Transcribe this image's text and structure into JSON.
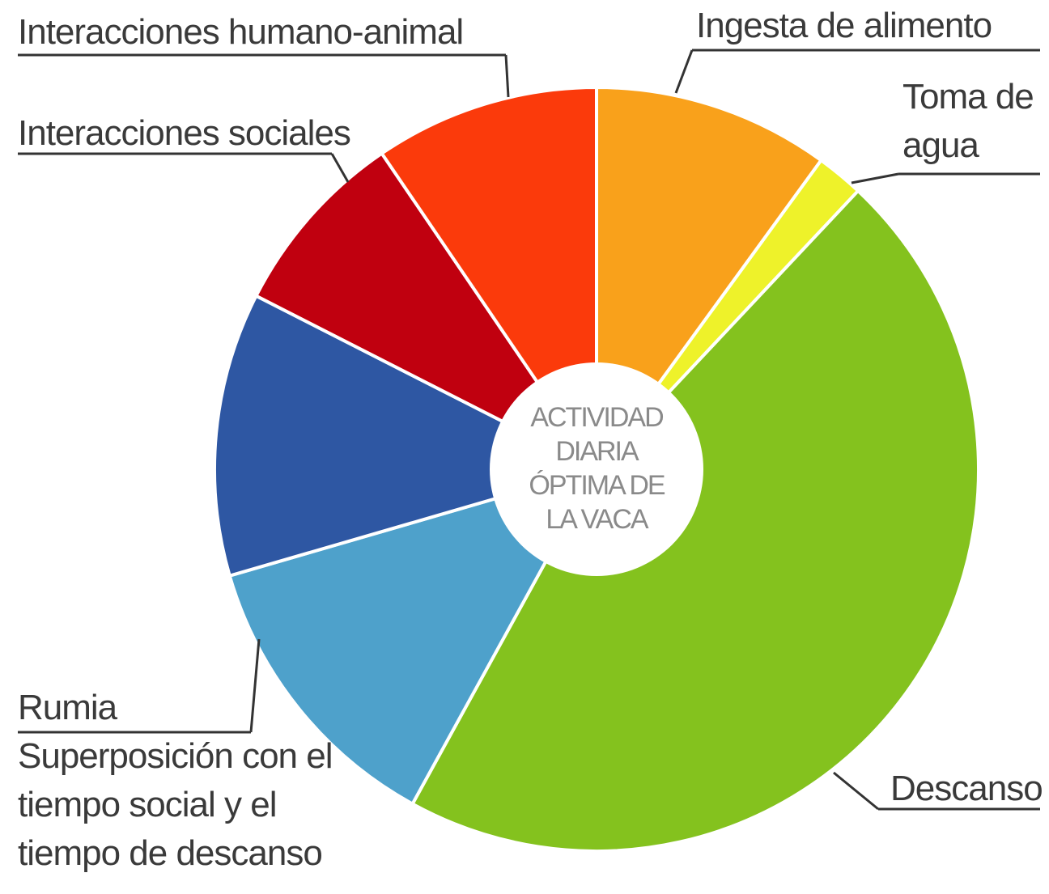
{
  "chart_data": {
    "type": "donut",
    "center_label": "ACTIVIDAD DIARIA ÓPTIMA DE LA VACA",
    "categories": [
      "Ingesta de alimento",
      "Toma de agua",
      "Descanso",
      "Superposición con el tiempo social y el tiempo de descanso",
      "Rumia",
      "Interacciones sociales",
      "Interacciones humano-animal"
    ],
    "values": [
      10,
      2,
      46,
      12.5,
      12,
      8,
      9.5
    ],
    "colors": [
      "#f9a11b",
      "#eef22a",
      "#84c21e",
      "#4ea1cb",
      "#2e57a3",
      "#c0000f",
      "#fb3a0b"
    ]
  }
}
